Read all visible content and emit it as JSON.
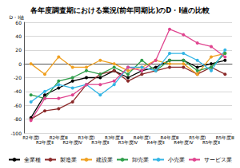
{
  "chart_data": {
    "type": "line",
    "title": "各年度調査期における業況(前年同期比)のD・I値の比較",
    "ylabel": "D・I値",
    "categories": [
      "R2年度Ⅰ",
      "R2年度Ⅱ",
      "R2年度Ⅲ",
      "R2年度Ⅳ",
      "R3年度Ⅰ",
      "R3年度Ⅱ",
      "R3年度Ⅲ",
      "R3年度Ⅳ",
      "R4年度Ⅰ",
      "R4年度Ⅱ",
      "R4年度Ⅲ",
      "R4年度Ⅳ",
      "R5年度Ⅰ",
      "R5年度Ⅱ",
      "R5年度Ⅲ"
    ],
    "series": [
      {
        "name": "全業種",
        "color": "#000000",
        "values": [
          -78,
          -45,
          -35,
          -25,
          -20,
          -20,
          -10,
          -20,
          -10,
          -5,
          5,
          5,
          -5,
          0,
          5
        ]
      },
      {
        "name": "製造業",
        "color": "#8b2a2a",
        "values": [
          -80,
          -68,
          -65,
          -55,
          -30,
          -15,
          -10,
          -25,
          -15,
          -10,
          -5,
          -5,
          -15,
          -5,
          -15
        ]
      },
      {
        "name": "建設業",
        "color": "#f0a020",
        "values": [
          0,
          -15,
          10,
          -5,
          -5,
          5,
          0,
          -10,
          -5,
          5,
          0,
          0,
          -15,
          10,
          15
        ]
      },
      {
        "name": "卸売業",
        "color": "#2e9e4a",
        "values": [
          -45,
          -50,
          -25,
          -20,
          -10,
          -15,
          -5,
          -15,
          5,
          -10,
          5,
          5,
          -10,
          -5,
          15
        ]
      },
      {
        "name": "小売業",
        "color": "#33b5e5",
        "values": [
          -55,
          -40,
          -30,
          -35,
          -30,
          -45,
          -30,
          -5,
          -5,
          -10,
          15,
          15,
          5,
          -10,
          20
        ]
      },
      {
        "name": "サービス業",
        "color": "#e0448f",
        "values": [
          -82,
          -50,
          -50,
          -45,
          -30,
          -30,
          -25,
          -5,
          -10,
          5,
          50,
          42,
          30,
          25,
          10
        ]
      }
    ],
    "ylim": [
      -100,
      60
    ],
    "yticks": [
      -100,
      -80,
      -60,
      -40,
      -20,
      0,
      20,
      40,
      60
    ],
    "grid": true,
    "legend": "bottom",
    "marker": "circle"
  }
}
